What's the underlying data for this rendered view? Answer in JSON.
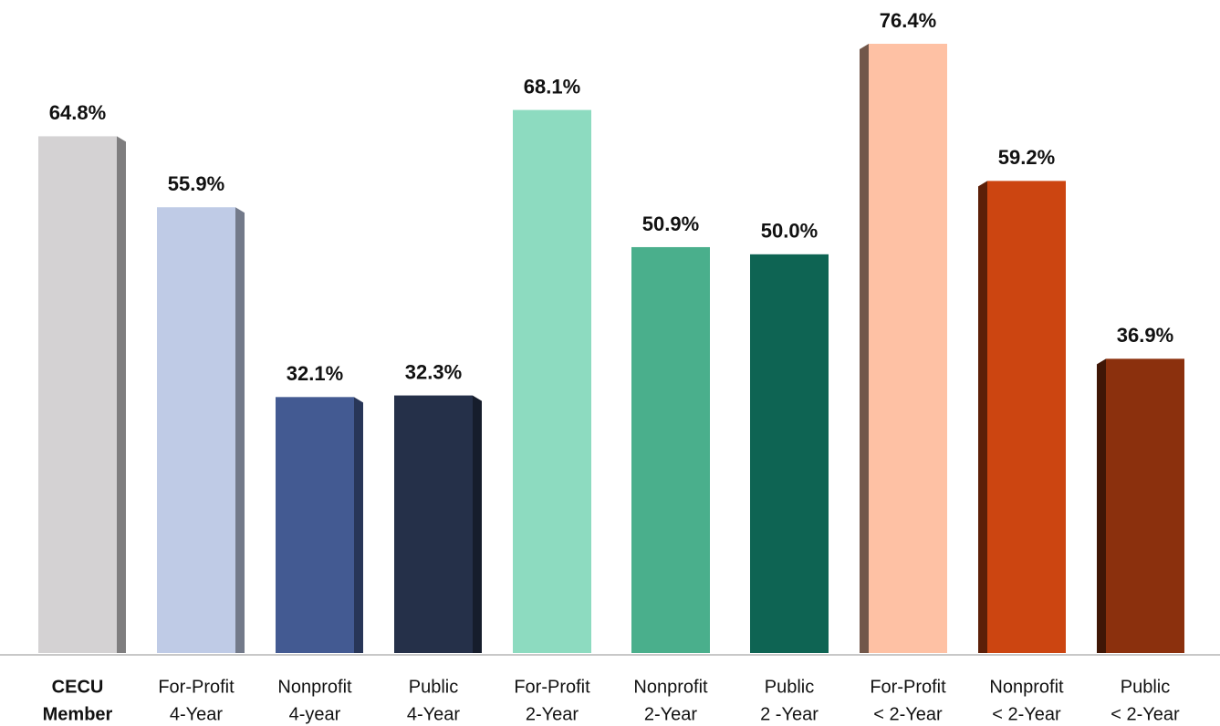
{
  "chart_data": {
    "type": "bar",
    "categories": [
      [
        "CECU",
        "Member"
      ],
      [
        "For-Profit",
        "4-Year"
      ],
      [
        "Nonprofit",
        "4-year"
      ],
      [
        "Public",
        "4-Year"
      ],
      [
        "For-Profit",
        "2-Year"
      ],
      [
        "Nonprofit",
        "2-Year"
      ],
      [
        "Public",
        "2 -Year"
      ],
      [
        "For-Profit",
        "< 2-Year"
      ],
      [
        "Nonprofit",
        "< 2-Year"
      ],
      [
        "Public",
        "< 2-Year"
      ]
    ],
    "values": [
      64.8,
      55.9,
      32.1,
      32.3,
      68.1,
      50.9,
      50.0,
      76.4,
      59.2,
      36.9
    ],
    "value_labels": [
      "64.8%",
      "55.9%",
      "32.1%",
      "32.3%",
      "68.1%",
      "50.9%",
      "50.0%",
      "76.4%",
      "59.2%",
      "36.9%"
    ],
    "colors": [
      "#d4d2d3",
      "#bfcbe6",
      "#435a92",
      "#253049",
      "#8ddbc0",
      "#4aaf8c",
      "#0e6453",
      "#fec1a4",
      "#cc4511",
      "#8b300d"
    ]
  }
}
